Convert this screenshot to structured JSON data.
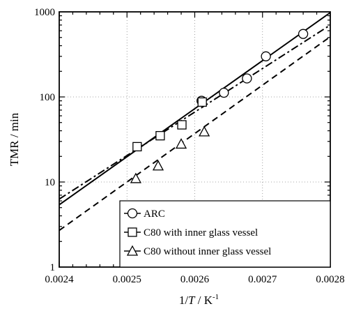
{
  "chart_data": {
    "type": "scatter",
    "title": "",
    "xlabel_prefix": "1/",
    "xlabel_var": "T",
    "xlabel_unit": " / K",
    "xlabel_sup": "-1",
    "ylabel": "TMR / min",
    "xlim": [
      0.0024,
      0.0028
    ],
    "ylim": [
      1,
      1000
    ],
    "yscale": "log",
    "xticks": [
      0.0024,
      0.0025,
      0.0026,
      0.0027,
      0.0028
    ],
    "xtick_labels": [
      "0.0024",
      "0.0025",
      "0.0026",
      "0.0027",
      "0.0028"
    ],
    "yticks": [
      1,
      10,
      100,
      1000
    ],
    "ytick_labels": [
      "1",
      "10",
      "100",
      "1000"
    ],
    "grid": "dotted",
    "legend_position": "bottom-right",
    "series": [
      {
        "name": "ARC",
        "marker": "circle",
        "fit_style": "solid",
        "x": [
          0.00261,
          0.002643,
          0.002677,
          0.002705,
          0.00276
        ],
        "y": [
          90,
          112,
          165,
          300,
          550
        ],
        "fit": {
          "x": [
            0.0024,
            0.0028
          ],
          "y": [
            5.4,
            980
          ]
        }
      },
      {
        "name": "C80 with inner glass vessel",
        "marker": "square",
        "fit_style": "dashdot",
        "x": [
          0.002515,
          0.002549,
          0.002581,
          0.002611
        ],
        "y": [
          26,
          35,
          47,
          87
        ],
        "fit": {
          "x": [
            0.0024,
            0.0028
          ],
          "y": [
            6.3,
            700
          ]
        }
      },
      {
        "name": "C80 without inner glass vessel",
        "marker": "triangle",
        "fit_style": "dashed",
        "x": [
          0.002513,
          0.002546,
          0.00258,
          0.002614
        ],
        "y": [
          11,
          15.5,
          28,
          39
        ],
        "fit": {
          "x": [
            0.0024,
            0.0028
          ],
          "y": [
            2.7,
            510
          ]
        }
      }
    ]
  }
}
